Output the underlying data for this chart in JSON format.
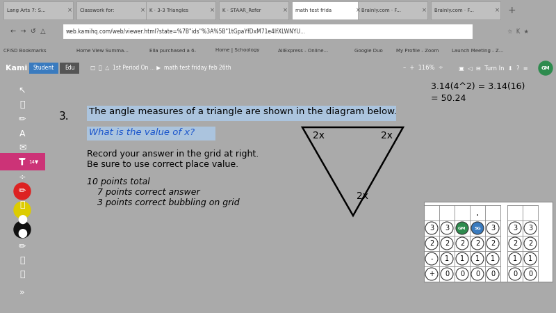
{
  "bg_outer": "#aaaaaa",
  "bg_chrome": "#dee1e6",
  "bg_page": "#ffffff",
  "bg_toolbar_left": "#2d2d2d",
  "bg_kami_bar": "#1e1e2e",
  "tab_active_color": "#ffffff",
  "tab_inactive_color": "#c8c8c8",
  "question_number": "3.",
  "question_text": "The angle measures of a triangle are shown in the diagram below.",
  "question_highlight": "#abc4de",
  "subquestion_text": "What is the value of x?",
  "subquestion_highlight": "#abc4de",
  "body_line1": "Record your answer in the grid at right.",
  "body_line2": "Be sure to use correct place value.",
  "italic_line1": "10 points total",
  "italic_line2": "     7 points correct answer",
  "italic_line3": "     3 points correct bubbling on grid",
  "triangle_label_top_left": "2x",
  "triangle_label_top_right": "2x",
  "triangle_label_bottom": "2x",
  "math_line1": "3.14(4^2) = 3.14(16)",
  "math_line2": "= 50.24",
  "triangle_color": "#000000",
  "text_color": "#000000",
  "grid_col1_vals": [
    "+",
    "-",
    "2",
    "3"
  ],
  "grid_col2_vals": [
    "0",
    "1",
    "2",
    "3"
  ],
  "grid_col3_vals": [
    "0",
    "1",
    "2",
    "GM"
  ],
  "grid_col4_vals": [
    "0",
    "1",
    "2",
    "SG"
  ],
  "grid_col5_vals": [
    "0",
    "1",
    "2",
    "3"
  ],
  "grid_right_col1": [
    "0",
    "1",
    "2",
    "3"
  ],
  "grid_right_col2": [
    "0",
    "1",
    "2",
    "3"
  ],
  "gm_color": "#2e8b4e",
  "sg_color": "#3a7bbf"
}
